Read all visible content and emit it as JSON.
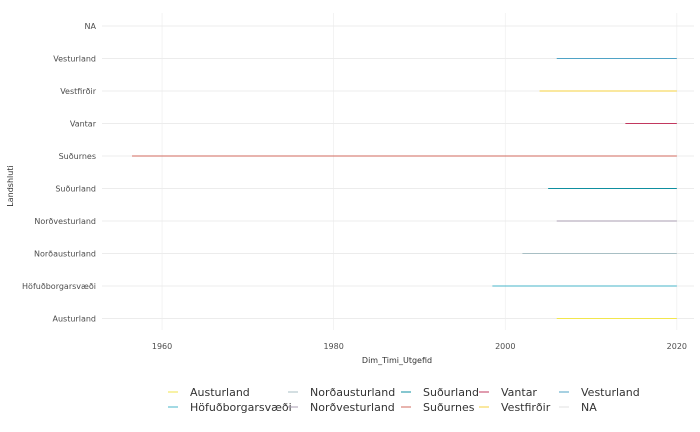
{
  "chart_data": {
    "type": "range-line",
    "xlabel": "Dim_Timi_Utgefid",
    "ylabel": "Landshluti",
    "xlim": [
      1953,
      2022
    ],
    "x_ticks": [
      1960,
      1980,
      2000,
      2020
    ],
    "categories": [
      "Austurland",
      "Höfuðborgarsvæði",
      "Norðausturland",
      "Norðvesturland",
      "Suðurland",
      "Suðurnes",
      "Vantar",
      "Vestfirðir",
      "Vesturland",
      "NA"
    ],
    "series": [
      {
        "name": "Austurland",
        "color": "#F2E64D",
        "x": [
          2006,
          2020
        ]
      },
      {
        "name": "Höfuðborgarsvæði",
        "color": "#47B5C9",
        "x": [
          1998.5,
          2020
        ]
      },
      {
        "name": "Norðausturland",
        "color": "#A8BFC4",
        "x": [
          2002,
          2020
        ]
      },
      {
        "name": "Norðvesturland",
        "color": "#A99CB2",
        "x": [
          2006,
          2020
        ]
      },
      {
        "name": "Suðurland",
        "color": "#0E8FA0",
        "x": [
          2005,
          2020
        ]
      },
      {
        "name": "Suðurnes",
        "color": "#D06A5E",
        "x": [
          1956.5,
          2020
        ]
      },
      {
        "name": "Vantar",
        "color": "#C2385F",
        "x": [
          2014,
          2020
        ]
      },
      {
        "name": "Vestfirðir",
        "color": "#F4D13F",
        "x": [
          2004,
          2020
        ]
      },
      {
        "name": "Vesturland",
        "color": "#4FA3C6",
        "x": [
          2006,
          2020
        ]
      },
      {
        "name": "NA",
        "color": "#E0E0E0",
        "x": null
      }
    ],
    "legend": {
      "placement": "bottom",
      "rows": [
        [
          "Austurland",
          "Norðausturland",
          "Suðurland",
          "Vantar",
          "Vesturland"
        ],
        [
          "Höfuðborgarsvæði",
          "Norðvesturland",
          "Suðurnes",
          "Vestfirðir",
          "NA"
        ]
      ]
    },
    "grid": true
  }
}
